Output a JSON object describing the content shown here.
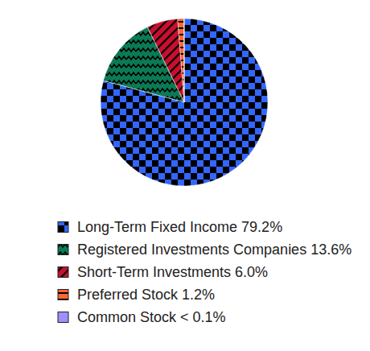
{
  "chart_data": {
    "type": "pie",
    "categories": [
      "Long-Term Fixed Income",
      "Registered Investments Companies",
      "Short-Term Investments",
      "Preferred Stock",
      "Common Stock"
    ],
    "values": [
      79.2,
      13.6,
      6.0,
      1.2,
      0.05
    ],
    "value_labels": [
      "79.2%",
      "13.6%",
      "6.0%",
      "1.2%",
      "< 0.1%"
    ],
    "colors": [
      "#3366ff",
      "#0b7a55",
      "#c8102e",
      "#ff6633",
      "#9f8fff"
    ],
    "legend": "bottom"
  }
}
